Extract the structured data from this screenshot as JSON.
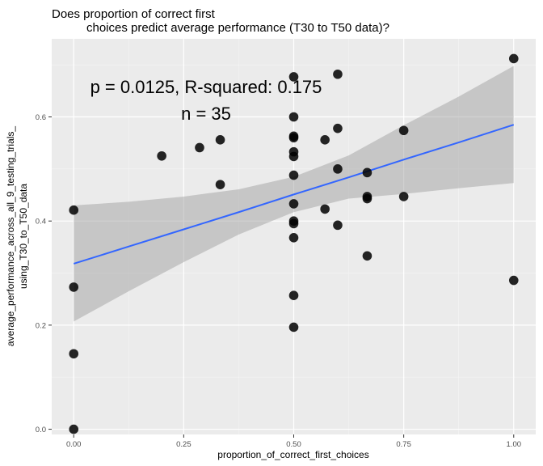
{
  "chart_data": {
    "type": "scatter",
    "title_line1": "Does proportion of correct first",
    "title_line2": "choices predict average performance (T30 to T50 data)?",
    "xlabel": "proportion_of_correct_first_choices",
    "ylabel_line1": "average_performance_across_all_9_testing_trials_",
    "ylabel_line2": "using_T30_to_T50_data",
    "xlim": [
      -0.05,
      1.05
    ],
    "ylim": [
      -0.01,
      0.75
    ],
    "x_ticks": [
      0.0,
      0.25,
      0.5,
      0.75,
      1.0
    ],
    "x_tick_labels": [
      "0.00",
      "0.25",
      "0.50",
      "0.75",
      "1.00"
    ],
    "y_ticks": [
      0.0,
      0.2,
      0.4,
      0.6
    ],
    "y_tick_labels": [
      "0.0",
      "0.2",
      "0.4",
      "0.6"
    ],
    "points": [
      [
        0.0,
        0.0
      ],
      [
        0.0,
        0.145
      ],
      [
        0.0,
        0.273
      ],
      [
        0.0,
        0.421
      ],
      [
        0.2,
        0.525
      ],
      [
        0.286,
        0.541
      ],
      [
        0.333,
        0.556
      ],
      [
        0.333,
        0.47
      ],
      [
        0.5,
        0.677
      ],
      [
        0.5,
        0.6
      ],
      [
        0.5,
        0.563
      ],
      [
        0.5,
        0.56
      ],
      [
        0.5,
        0.533
      ],
      [
        0.5,
        0.524
      ],
      [
        0.5,
        0.488
      ],
      [
        0.5,
        0.433
      ],
      [
        0.5,
        0.4
      ],
      [
        0.5,
        0.395
      ],
      [
        0.5,
        0.368
      ],
      [
        0.5,
        0.257
      ],
      [
        0.5,
        0.196
      ],
      [
        0.571,
        0.556
      ],
      [
        0.571,
        0.423
      ],
      [
        0.6,
        0.682
      ],
      [
        0.6,
        0.578
      ],
      [
        0.6,
        0.5
      ],
      [
        0.6,
        0.392
      ],
      [
        0.667,
        0.493
      ],
      [
        0.667,
        0.447
      ],
      [
        0.667,
        0.443
      ],
      [
        0.667,
        0.333
      ],
      [
        0.75,
        0.574
      ],
      [
        0.75,
        0.447
      ],
      [
        1.0,
        0.712
      ],
      [
        1.0,
        0.286
      ]
    ],
    "fit_line": {
      "x": [
        0.0,
        0.125,
        0.25,
        0.375,
        0.5,
        0.625,
        0.75,
        0.875,
        1.0
      ],
      "y": [
        0.318,
        0.351,
        0.384,
        0.417,
        0.451,
        0.484,
        0.518,
        0.551,
        0.585
      ],
      "ci_upper": [
        0.43,
        0.437,
        0.447,
        0.461,
        0.485,
        0.526,
        0.584,
        0.639,
        0.698
      ],
      "ci_lower": [
        0.207,
        0.265,
        0.321,
        0.374,
        0.417,
        0.443,
        0.452,
        0.463,
        0.473
      ]
    },
    "colors": {
      "panel": "#ebebeb",
      "grid_major": "#ffffff",
      "points": "#000000",
      "fit_line": "#3366ff",
      "ci_band": "#999999"
    },
    "annotation_stats": "p = 0.0125, R-squared:  0.175",
    "annotation_n": "n = 35"
  }
}
